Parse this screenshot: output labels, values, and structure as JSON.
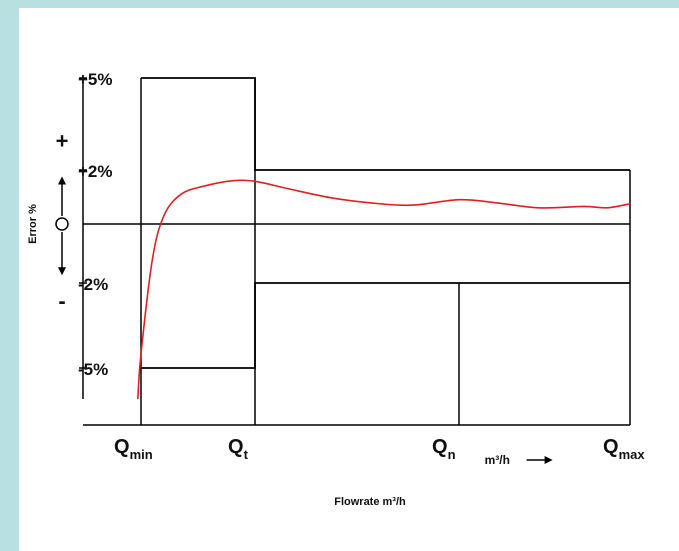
{
  "chart_data": {
    "type": "line",
    "title": "",
    "xlabel": "Flowrate m³/h",
    "ylabel": "Error %",
    "x_unit_label": "m³/h",
    "y_signs": {
      "plus": "+",
      "zero": "O",
      "minus": "-"
    },
    "y_ticks": [
      {
        "value": 5,
        "label": "+5%"
      },
      {
        "value": 2,
        "label": "+2%"
      },
      {
        "value": -2,
        "label": "-2%"
      },
      {
        "value": -5,
        "label": "-5%"
      }
    ],
    "x_ticks": [
      {
        "name": "Qmin",
        "main": "Q",
        "sub": "min",
        "x": 0
      },
      {
        "name": "Qt",
        "main": "Q",
        "sub": "t",
        "x": 1
      },
      {
        "name": "Qn",
        "main": "Q",
        "sub": "n",
        "x": 2.8
      },
      {
        "name": "Qmax",
        "main": "Q",
        "sub": "max",
        "x": 4.3
      }
    ],
    "ylim": [
      -6.2,
      5
    ],
    "xlim": [
      -0.55,
      4.3
    ],
    "upper_limit": [
      {
        "x": 0,
        "y": 5
      },
      {
        "x": 1,
        "y": 5
      },
      {
        "x": 1,
        "y": 2
      },
      {
        "x": 4.3,
        "y": 2
      }
    ],
    "lower_limit": [
      {
        "x": 0,
        "y": -5
      },
      {
        "x": 1,
        "y": -5
      },
      {
        "x": 1,
        "y": -2
      },
      {
        "x": 4.3,
        "y": -2
      }
    ],
    "series": [
      {
        "color": "#e02020",
        "points": [
          [
            -0.03,
            -6.2
          ],
          [
            0,
            -4.5
          ],
          [
            0.1,
            -1.2
          ],
          [
            0.2,
            0.3
          ],
          [
            0.35,
            1.1
          ],
          [
            0.55,
            1.4
          ],
          [
            0.8,
            1.6
          ],
          [
            1.0,
            1.58
          ],
          [
            1.3,
            1.3
          ],
          [
            1.7,
            0.95
          ],
          [
            2.1,
            0.75
          ],
          [
            2.4,
            0.7
          ],
          [
            2.8,
            0.9
          ],
          [
            3.1,
            0.8
          ],
          [
            3.5,
            0.6
          ],
          [
            3.9,
            0.65
          ],
          [
            4.1,
            0.6
          ],
          [
            4.3,
            0.75
          ]
        ]
      }
    ],
    "grid": false,
    "legend": "none"
  },
  "colors": {
    "frame": "#b8e0e0",
    "curve": "#e02020",
    "lines": "#000000"
  }
}
